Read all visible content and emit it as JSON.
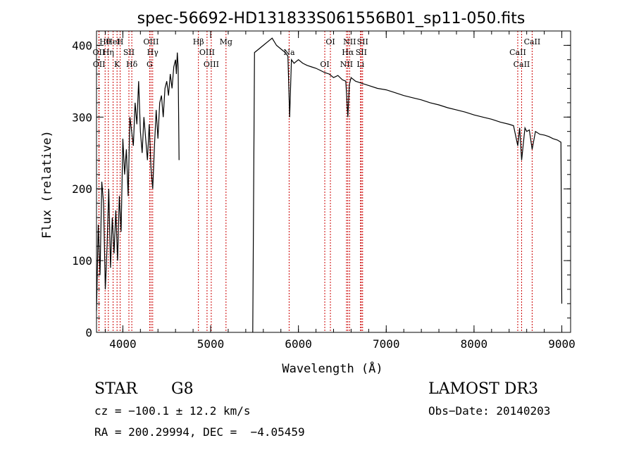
{
  "chart_data": {
    "type": "line",
    "title": "spec-56692-HD131833S061556B01_sp11-050.fits",
    "xlabel": "Wavelength (Å)",
    "ylabel": "Flux (relative)",
    "xlim": [
      3700,
      9100
    ],
    "ylim": [
      0,
      420
    ],
    "xticks": [
      4000,
      5000,
      6000,
      7000,
      8000,
      9000
    ],
    "yticks": [
      0,
      100,
      200,
      300,
      400
    ],
    "grid": false,
    "line_color": "#000000",
    "marker_color": "#cc0000",
    "series": [
      {
        "x": [
          3700,
          3720,
          3740,
          3760,
          3780,
          3800,
          3820,
          3840,
          3860,
          3880,
          3900,
          3920,
          3940,
          3960,
          3980,
          4000,
          4020,
          4040,
          4060,
          4080,
          4100,
          4120,
          4140,
          4160,
          4180,
          4200,
          4220,
          4240,
          4260,
          4280,
          4300,
          4320,
          4340,
          4360,
          4380,
          4400,
          4420,
          4440,
          4460,
          4480,
          4500,
          4520,
          4540,
          4560,
          4580,
          4600,
          4610,
          4620,
          4630,
          4640
        ],
        "values": [
          30,
          150,
          80,
          210,
          180,
          60,
          120,
          200,
          90,
          160,
          110,
          170,
          100,
          190,
          140,
          270,
          220,
          255,
          190,
          300,
          280,
          260,
          320,
          290,
          350,
          280,
          250,
          300,
          270,
          240,
          290,
          230,
          200,
          260,
          310,
          270,
          320,
          330,
          300,
          340,
          350,
          330,
          360,
          340,
          370,
          380,
          360,
          390,
          370,
          240
        ]
      },
      {
        "x": [
          5480,
          5500,
          5550,
          5600,
          5650,
          5700,
          5750,
          5800,
          5850,
          5880,
          5900,
          5920,
          5950,
          6000,
          6050,
          6100,
          6150,
          6200,
          6250,
          6300,
          6350,
          6400,
          6450,
          6500,
          6540,
          6563,
          6580,
          6600,
          6650,
          6700,
          6750,
          6800,
          6900,
          7000,
          7100,
          7200,
          7300,
          7400,
          7500,
          7600,
          7700,
          7800,
          7900,
          8000,
          8100,
          8200,
          8300,
          8400,
          8450,
          8498,
          8520,
          8542,
          8580,
          8600,
          8630,
          8662,
          8700,
          8750,
          8800,
          8850,
          8900,
          8950,
          8990,
          9000
        ],
        "values": [
          0,
          390,
          395,
          400,
          405,
          410,
          400,
          395,
          390,
          385,
          300,
          380,
          375,
          380,
          375,
          372,
          370,
          368,
          365,
          362,
          360,
          355,
          358,
          352,
          350,
          300,
          345,
          355,
          350,
          348,
          346,
          344,
          340,
          338,
          334,
          330,
          327,
          324,
          320,
          317,
          313,
          310,
          307,
          303,
          300,
          297,
          293,
          290,
          288,
          260,
          285,
          240,
          285,
          280,
          282,
          255,
          280,
          276,
          275,
          273,
          270,
          268,
          265,
          40
        ]
      }
    ],
    "lines": [
      {
        "name": "Hθ",
        "x": 3798
      },
      {
        "name": "OII",
        "x": 3727
      },
      {
        "name": "OII",
        "x": 3729
      },
      {
        "name": "HeI",
        "x": 3889
      },
      {
        "name": "Hη",
        "x": 3835
      },
      {
        "name": "K",
        "x": 3934
      },
      {
        "name": "H",
        "x": 3969
      },
      {
        "name": "SII",
        "x": 4069
      },
      {
        "name": "Hδ",
        "x": 4102
      },
      {
        "name": "OIII",
        "x": 4321
      },
      {
        "name": "Hγ",
        "x": 4340
      },
      {
        "name": "G",
        "x": 4305
      },
      {
        "name": "Hβ",
        "x": 4861
      },
      {
        "name": "OIII",
        "x": 4959
      },
      {
        "name": "OIII",
        "x": 5007
      },
      {
        "name": "Mg",
        "x": 5175
      },
      {
        "name": "Na",
        "x": 5894
      },
      {
        "name": "OI",
        "x": 6300
      },
      {
        "name": "OI",
        "x": 6364
      },
      {
        "name": "Hα",
        "x": 6563
      },
      {
        "name": "NII",
        "x": 6548
      },
      {
        "name": "NII",
        "x": 6583
      },
      {
        "name": "SII",
        "x": 6716
      },
      {
        "name": "Li",
        "x": 6707
      },
      {
        "name": "SII",
        "x": 6731
      },
      {
        "name": "CaII",
        "x": 8498
      },
      {
        "name": "CaII",
        "x": 8542
      },
      {
        "name": "CaII",
        "x": 8662
      }
    ]
  },
  "info": {
    "class": "STAR",
    "subclass": "G8",
    "survey": "LAMOST DR3",
    "cz": "cz = −100.1 ± 12.2 km/s",
    "obs_date": "Obs−Date: 20140203",
    "coords": "RA = 200.29994, DEC =  −4.05459"
  }
}
